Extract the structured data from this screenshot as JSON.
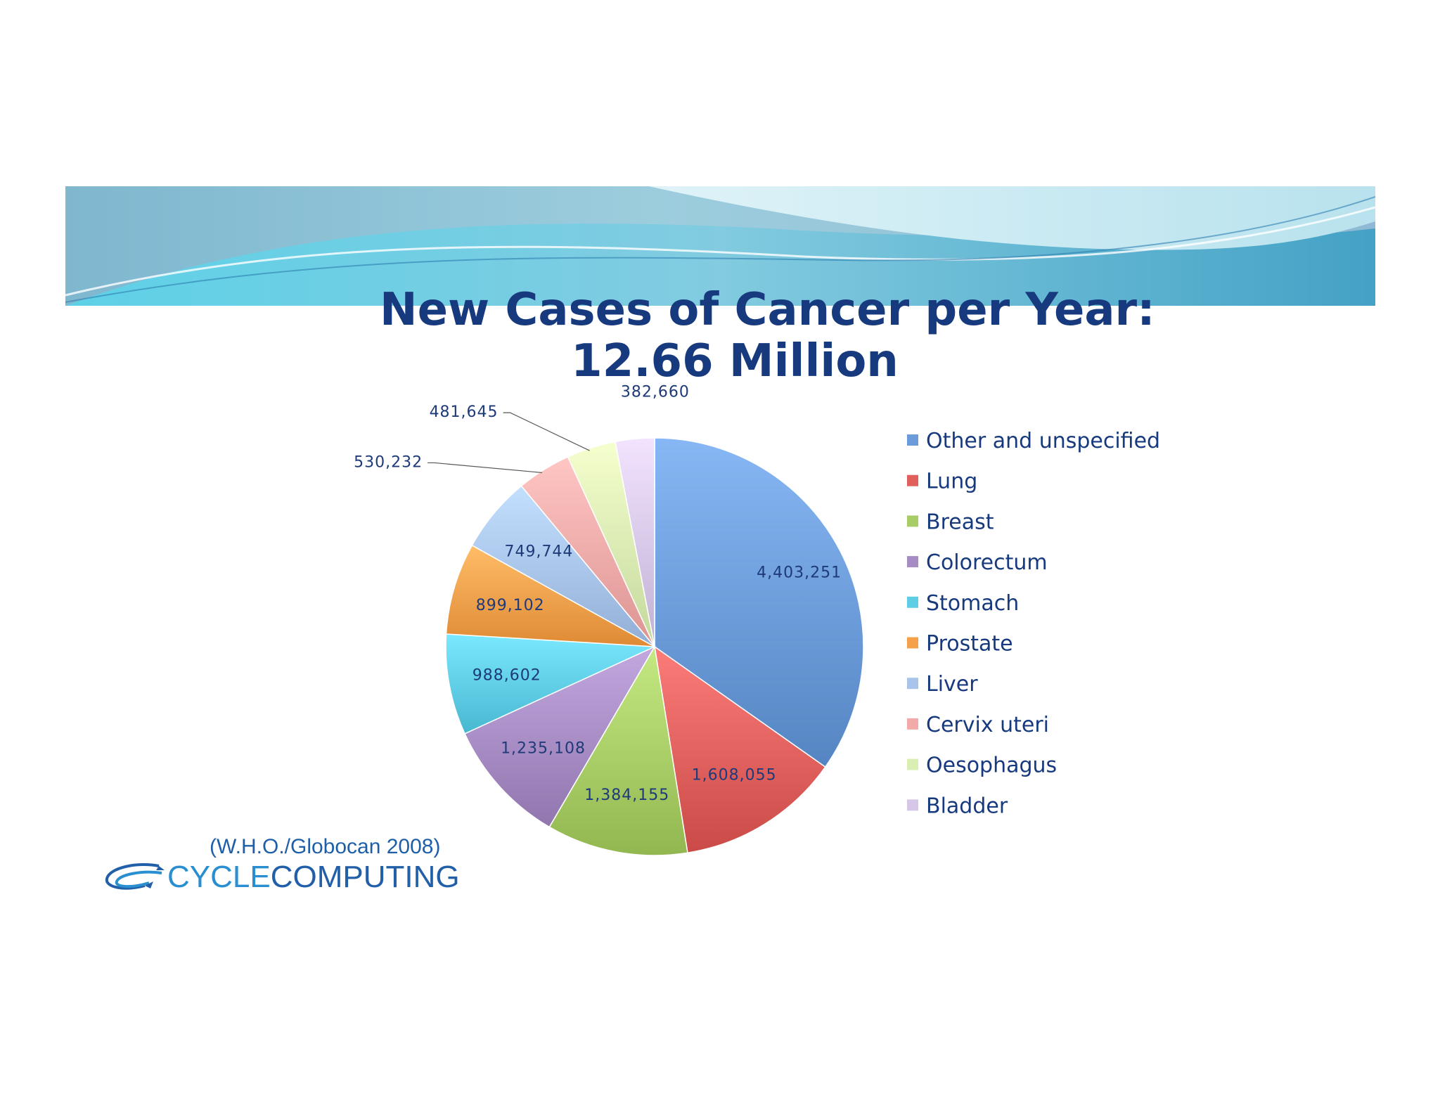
{
  "title": {
    "line1": "New Cases of Cancer per Year:",
    "line2": "12.66 Million"
  },
  "source": "(W.H.O./Globocan 2008)",
  "logo": {
    "part1": "CYCLE",
    "part2": "COMPUTING"
  },
  "colors": {
    "title": "#173a7e",
    "banner_light": "#b9e4ef",
    "banner_dark": "#3da8c9",
    "logo_light": "#2a8fd0",
    "logo_dark": "#2160a8"
  },
  "chart_data": {
    "type": "pie",
    "start_angle_deg": 0,
    "direction": "clockwise",
    "legend_position": "right",
    "slices": [
      {
        "name": "Other and unspecified",
        "value": 4403251,
        "label": "4,403,251",
        "color": "#6b9bd8"
      },
      {
        "name": "Lung",
        "value": 1608055,
        "label": "1,608,055",
        "color": "#e0605e"
      },
      {
        "name": "Breast",
        "value": 1384155,
        "label": "1,384,155",
        "color": "#a9cd66"
      },
      {
        "name": "Colorectum",
        "value": 1235108,
        "label": "1,235,108",
        "color": "#a78cc4"
      },
      {
        "name": "Stomach",
        "value": 988602,
        "label": "988,602",
        "color": "#5ecde6"
      },
      {
        "name": "Prostate",
        "value": 899102,
        "label": "899,102",
        "color": "#f5a04b"
      },
      {
        "name": "Liver",
        "value": 749744,
        "label": "749,744",
        "color": "#a8c4eb"
      },
      {
        "name": "Cervix uteri",
        "value": 530232,
        "label": "530,232",
        "color": "#f2aaa8"
      },
      {
        "name": "Oesophagus",
        "value": 481645,
        "label": "481,645",
        "color": "#d9eeb2"
      },
      {
        "name": "Bladder",
        "value": 382660,
        "label": "382,660",
        "color": "#d6c7e9"
      }
    ]
  }
}
